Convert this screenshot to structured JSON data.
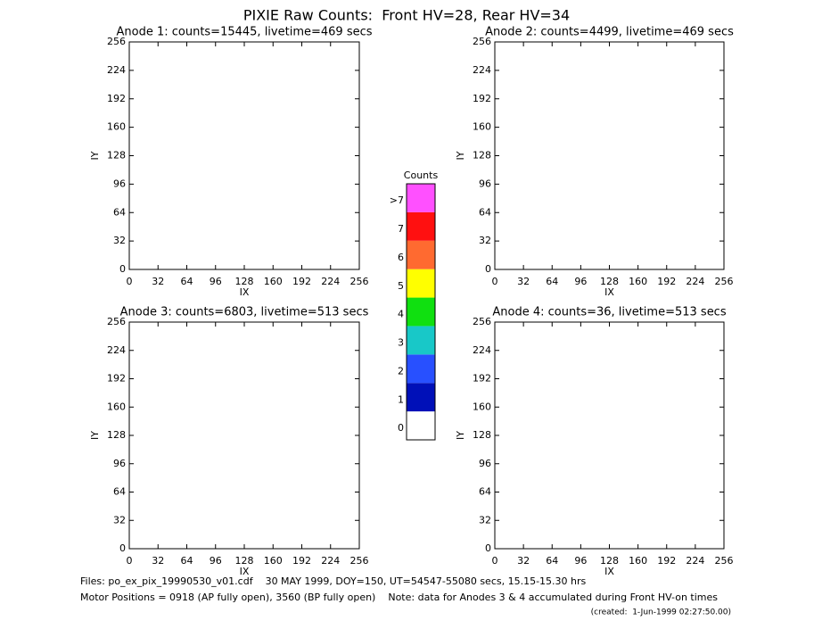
{
  "title": "PIXIE Raw Counts:  Front HV=28, Rear HV=34",
  "chart_data": [
    {
      "type": "heatmap",
      "title": "Anode 1: counts=15445, livetime=469 secs",
      "xlabel": "IX",
      "ylabel": "IY",
      "xlim": [
        0,
        256
      ],
      "ylim": [
        0,
        256
      ],
      "xticks": [
        0,
        32,
        64,
        96,
        128,
        160,
        192,
        224,
        256
      ],
      "yticks": [
        0,
        32,
        64,
        96,
        128,
        160,
        192,
        224,
        256
      ]
    },
    {
      "type": "heatmap",
      "title": "Anode 2: counts=4499, livetime=469 secs",
      "xlabel": "IX",
      "ylabel": "IY",
      "xlim": [
        0,
        256
      ],
      "ylim": [
        0,
        256
      ],
      "xticks": [
        0,
        32,
        64,
        96,
        128,
        160,
        192,
        224,
        256
      ],
      "yticks": [
        0,
        32,
        64,
        96,
        128,
        160,
        192,
        224,
        256
      ]
    },
    {
      "type": "heatmap",
      "title": "Anode 3: counts=6803, livetime=513 secs",
      "xlabel": "IX",
      "ylabel": "IY",
      "xlim": [
        0,
        256
      ],
      "ylim": [
        0,
        256
      ],
      "xticks": [
        0,
        32,
        64,
        96,
        128,
        160,
        192,
        224,
        256
      ],
      "yticks": [
        0,
        32,
        64,
        96,
        128,
        160,
        192,
        224,
        256
      ]
    },
    {
      "type": "heatmap",
      "title": "Anode 4: counts=36, livetime=513 secs",
      "xlabel": "IX",
      "ylabel": "IY",
      "xlim": [
        0,
        256
      ],
      "ylim": [
        0,
        256
      ],
      "xticks": [
        0,
        32,
        64,
        96,
        128,
        160,
        192,
        224,
        256
      ],
      "yticks": [
        0,
        32,
        64,
        96,
        128,
        160,
        192,
        224,
        256
      ]
    },
    {
      "type": "colorbar",
      "title": "Counts",
      "categories": [
        "0",
        "1",
        "2",
        "3",
        "4",
        "5",
        "6",
        "7",
        ">7"
      ],
      "colors": [
        "#ffffff",
        "#0010b8",
        "#2850ff",
        "#18c8c8",
        "#10e010",
        "#ffff00",
        "#ff6a30",
        "#ff1010",
        "#ff50ff"
      ]
    }
  ],
  "footer": {
    "files": "Files: po_ex_pix_19990530_v01.cdf    30 MAY 1999, DOY=150, UT=54547-55080 secs, 15.15-15.30 hrs",
    "motor": "Motor Positions = 0918 (AP fully open), 3560 (BP fully open)    Note: data for Anodes 3 & 4 accumulated during Front HV-on times",
    "created": "(created:  1-Jun-1999 02:27:50.00)"
  }
}
